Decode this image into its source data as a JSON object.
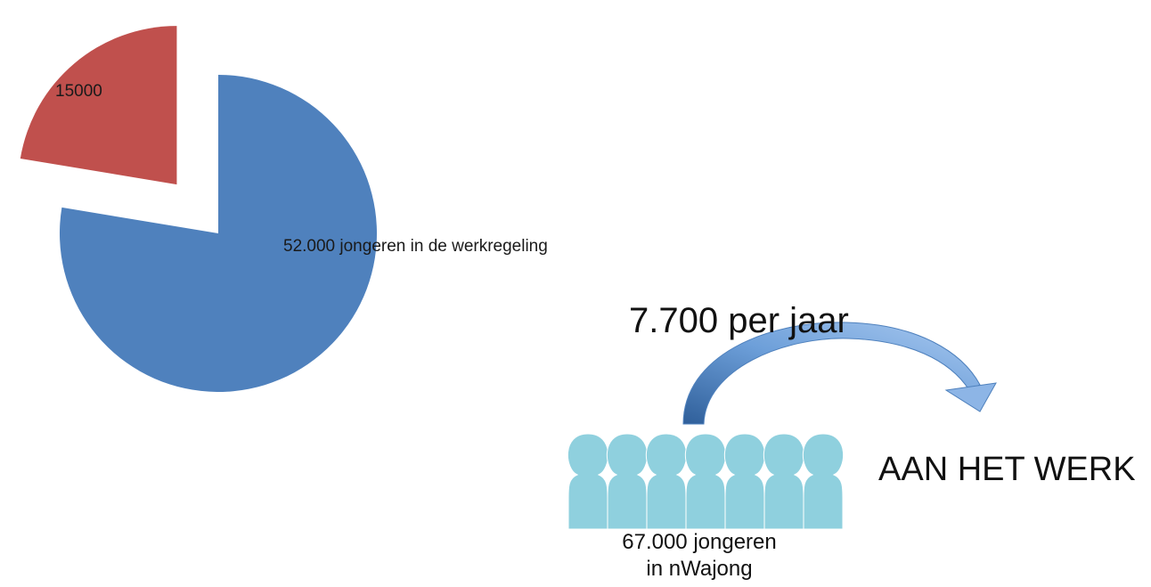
{
  "chart_data": {
    "type": "pie",
    "slices": [
      {
        "label": "52.000 jongeren in de werkregeling",
        "value": 52000,
        "color": "#4f81bd"
      },
      {
        "label": "15000",
        "value": 15000,
        "color": "#c0504d",
        "exploded": true
      }
    ],
    "title": ""
  },
  "infographic": {
    "rate_label": "7.700 per jaar",
    "destination_label": "AAN HET WERK",
    "population_line1": "67.000 jongeren",
    "population_line2": "in nWajong",
    "people_count": 7,
    "people_color": "#8fd0de",
    "arrow_color": "#4f81bd"
  }
}
